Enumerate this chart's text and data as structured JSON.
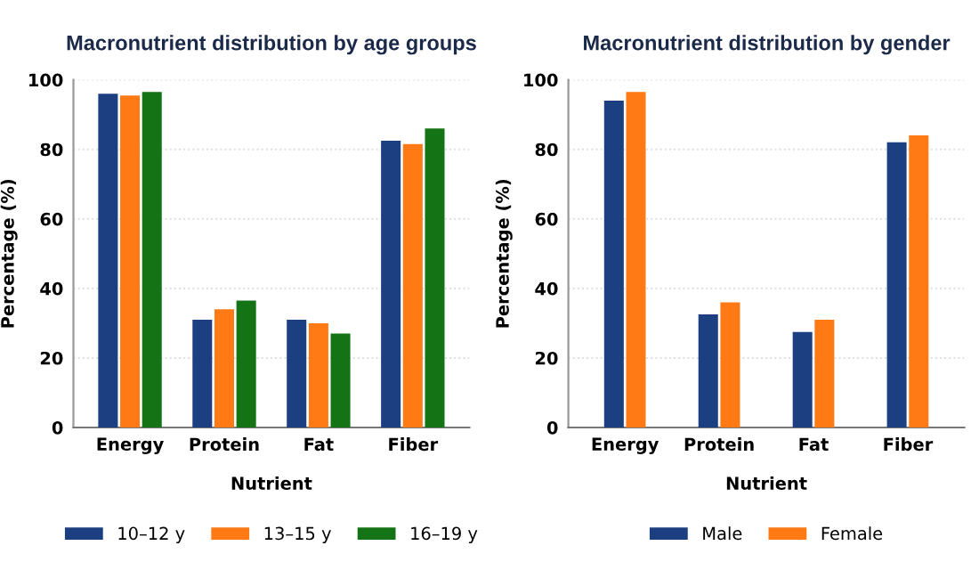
{
  "chart_data": [
    {
      "type": "bar",
      "title": "Macronutrient distribution by age groups",
      "xlabel": "Nutrient",
      "ylabel": "Percentage (%)",
      "categories": [
        "Energy",
        "Protein",
        "Fat",
        "Fiber"
      ],
      "ylim": [
        0,
        100
      ],
      "yticks": [
        0,
        20,
        40,
        60,
        80,
        100
      ],
      "grid": "y",
      "legend": "bottom",
      "series": [
        {
          "name": "10–12 y",
          "color": "#1b3f80",
          "values": [
            96,
            31,
            31,
            82.5
          ]
        },
        {
          "name": "13–15 y",
          "color": "#ff7a14",
          "values": [
            95.5,
            34,
            30,
            81.5
          ]
        },
        {
          "name": "16–19 y",
          "color": "#147314",
          "values": [
            96.5,
            36.5,
            27,
            86
          ]
        }
      ]
    },
    {
      "type": "bar",
      "title": "Macronutrient distribution by gender",
      "xlabel": "Nutrient",
      "ylabel": "Percentage (%)",
      "categories": [
        "Energy",
        "Protein",
        "Fat",
        "Fiber"
      ],
      "ylim": [
        0,
        100
      ],
      "yticks": [
        0,
        20,
        40,
        60,
        80,
        100
      ],
      "grid": "y",
      "legend": "bottom",
      "series": [
        {
          "name": "Male",
          "color": "#1b3f80",
          "values": [
            94,
            32.5,
            27.5,
            82
          ]
        },
        {
          "name": "Female",
          "color": "#ff7a14",
          "values": [
            96.5,
            36,
            31,
            84
          ]
        }
      ]
    }
  ]
}
